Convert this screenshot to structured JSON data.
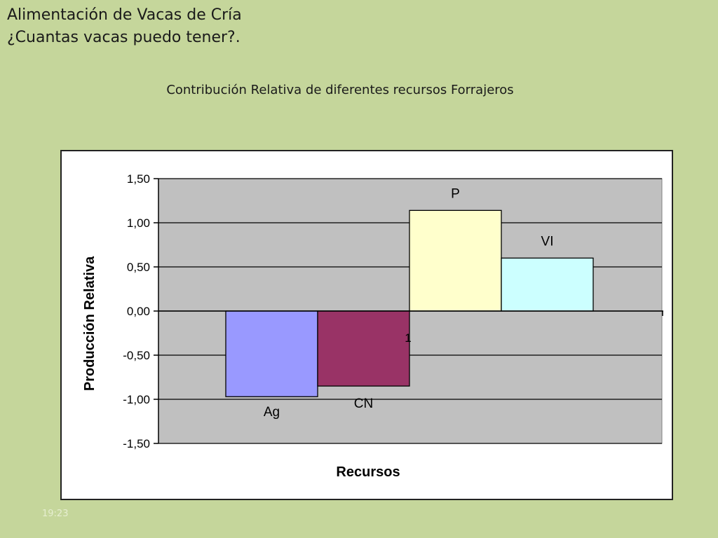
{
  "slide": {
    "title_line1": "Alimentación de Vacas de Cría",
    "title_line2": "¿Cuantas vacas puedo tener?.",
    "subtitle": "Contribución Relativa de diferentes recursos Forrajeros",
    "timestamp": "19:23"
  },
  "chart_data": {
    "type": "bar",
    "title": "",
    "xlabel": "Recursos",
    "ylabel": "Producción Relativa",
    "ylim": [
      -1.5,
      1.5
    ],
    "yticks": [
      1.5,
      1.0,
      0.5,
      0.0,
      -0.5,
      -1.0,
      -1.5
    ],
    "ytick_labels": [
      "1,50",
      "1,00",
      "0,50",
      "0,00",
      "-0,50",
      "-1,00",
      "-1,50"
    ],
    "grid": true,
    "x_tick_label": "1",
    "categories": [
      "Ag",
      "CN",
      "P",
      "VI"
    ],
    "values": [
      -0.97,
      -0.85,
      1.14,
      0.6
    ],
    "colors": [
      "#9999ff",
      "#993366",
      "#ffffcc",
      "#ccffff"
    ],
    "plot_background": "#c0c0c0"
  }
}
